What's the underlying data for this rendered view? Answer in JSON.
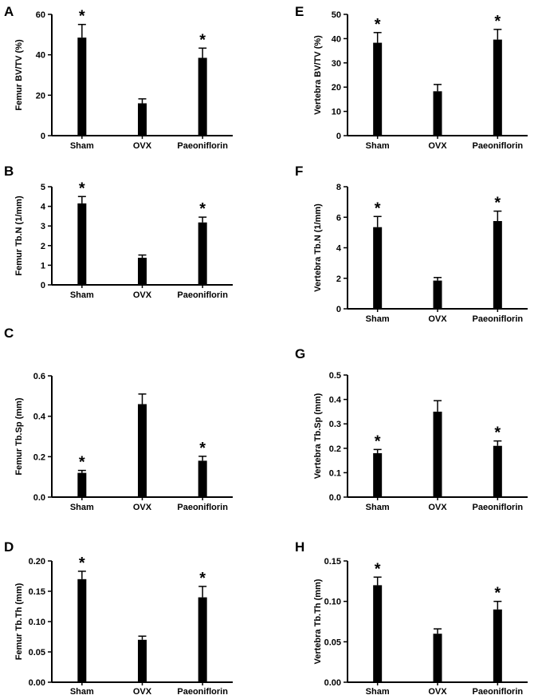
{
  "chart_data": [
    {
      "letter": "A",
      "type": "bar",
      "ylabel": "Femur BV/TV (%)",
      "categories": [
        "Sham",
        "OVX",
        "Paeoniflorin"
      ],
      "values": [
        48.5,
        16,
        38.5
      ],
      "errors": [
        6.5,
        2.2,
        4.8
      ],
      "significance": [
        "*",
        "",
        "*"
      ],
      "ylim": [
        0,
        60
      ],
      "yticks": [
        "0",
        "20",
        "40",
        "60"
      ]
    },
    {
      "letter": "B",
      "type": "bar",
      "ylabel": "Femur Tb.N (1/mm)",
      "categories": [
        "Sham",
        "OVX",
        "Paeoniflorin"
      ],
      "values": [
        4.15,
        1.38,
        3.18
      ],
      "errors": [
        0.35,
        0.14,
        0.27
      ],
      "significance": [
        "*",
        "",
        "*"
      ],
      "ylim": [
        0,
        5
      ],
      "yticks": [
        "0",
        "1",
        "2",
        "3",
        "4",
        "5"
      ]
    },
    {
      "letter": "C",
      "type": "bar",
      "ylabel": "Femur Tb.Sp (mm)",
      "categories": [
        "Sham",
        "OVX",
        "Paeoniflorin"
      ],
      "values": [
        0.12,
        0.46,
        0.18
      ],
      "errors": [
        0.012,
        0.05,
        0.022
      ],
      "significance": [
        "*",
        "",
        "*"
      ],
      "ylim": [
        0,
        0.6
      ],
      "yticks": [
        "0.0",
        "0.2",
        "0.4",
        "0.6"
      ]
    },
    {
      "letter": "D",
      "type": "bar",
      "ylabel": "Femur Tb.Th (mm)",
      "categories": [
        "Sham",
        "OVX",
        "Paeoniflorin"
      ],
      "values": [
        0.17,
        0.07,
        0.14
      ],
      "errors": [
        0.013,
        0.006,
        0.018
      ],
      "significance": [
        "*",
        "",
        "*"
      ],
      "ylim": [
        0,
        0.2
      ],
      "yticks": [
        "0.00",
        "0.05",
        "0.10",
        "0.15",
        "0.20"
      ]
    },
    {
      "letter": "E",
      "type": "bar",
      "ylabel": "Vertebra BV/TV (%)",
      "categories": [
        "Sham",
        "OVX",
        "Paeoniflorin"
      ],
      "values": [
        38.3,
        18.3,
        39.6
      ],
      "errors": [
        4.2,
        2.8,
        4.2
      ],
      "significance": [
        "*",
        "",
        "*"
      ],
      "ylim": [
        0,
        50
      ],
      "yticks": [
        "0",
        "10",
        "20",
        "30",
        "40",
        "50"
      ]
    },
    {
      "letter": "F",
      "type": "bar",
      "ylabel": "Vertebra Tb.N (1/mm)",
      "categories": [
        "Sham",
        "OVX",
        "Paeoniflorin"
      ],
      "values": [
        5.35,
        1.85,
        5.75
      ],
      "errors": [
        0.7,
        0.2,
        0.65
      ],
      "significance": [
        "*",
        "",
        "*"
      ],
      "ylim": [
        0,
        8
      ],
      "yticks": [
        "0",
        "2",
        "4",
        "6",
        "8"
      ]
    },
    {
      "letter": "G",
      "type": "bar",
      "ylabel": "Vertebra Tb.Sp (mm)",
      "categories": [
        "Sham",
        "OVX",
        "Paeoniflorin"
      ],
      "values": [
        0.18,
        0.35,
        0.21
      ],
      "errors": [
        0.015,
        0.045,
        0.02
      ],
      "significance": [
        "*",
        "",
        "*"
      ],
      "ylim": [
        0,
        0.5
      ],
      "yticks": [
        "0.0",
        "0.1",
        "0.2",
        "0.3",
        "0.4",
        "0.5"
      ]
    },
    {
      "letter": "H",
      "type": "bar",
      "ylabel": "Vertebra Tb.Th (mm)",
      "categories": [
        "Sham",
        "OVX",
        "Paeoniflorin"
      ],
      "values": [
        0.12,
        0.06,
        0.09
      ],
      "errors": [
        0.01,
        0.006,
        0.01
      ],
      "significance": [
        "*",
        "",
        "*"
      ],
      "ylim": [
        0,
        0.15
      ],
      "yticks": [
        "0.00",
        "0.05",
        "0.10",
        "0.15"
      ]
    }
  ]
}
